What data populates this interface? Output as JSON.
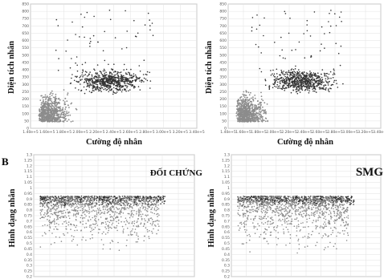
{
  "panel_b_label": "B",
  "chart_data": [
    {
      "type": "scatter",
      "title": "",
      "xlabel": "Cường độ nhân",
      "ylabel": "Diện tích nhân",
      "xticks": [
        "1.40e+5",
        "1.60e+5",
        "1.80e+5",
        "2.00e+5",
        "2.20e+5",
        "2.40e+5",
        "2.60e+5",
        "2.80e+5",
        "3.00e+5",
        "3.20e+5",
        "3.40e+5"
      ],
      "yticks": [
        "0",
        "50",
        "100",
        "150",
        "200",
        "250",
        "300",
        "350",
        "400",
        "450",
        "500",
        "550",
        "600",
        "650",
        "700",
        "750",
        "800",
        "850"
      ],
      "ylim": [
        0,
        850
      ],
      "series": [
        {
          "color": "#8c8c8c",
          "x_range": [
            "1.40e+5",
            "1.85e+5"
          ],
          "y_range": [
            0,
            320
          ]
        },
        {
          "color": "#333333",
          "x_range": [
            "1.85e+5",
            "3.00e+5"
          ],
          "y_range": [
            150,
            420
          ]
        }
      ]
    },
    {
      "type": "scatter",
      "title": "",
      "xlabel": "Cường độ nhân",
      "ylabel": "Diện tích nhân",
      "xticks": [
        "1.40e+5",
        "1.60e+5",
        "1.80e+5",
        "2.00e+5",
        "2.20e+5",
        "2.40e+5",
        "2.60e+5",
        "2.80e+5",
        "3.00e+5",
        "3.20e+5",
        "3.40e+5"
      ],
      "yticks": [
        "0",
        "50",
        "100",
        "150",
        "200",
        "250",
        "300",
        "350",
        "400",
        "450",
        "500",
        "550",
        "600",
        "650",
        "700",
        "750",
        "800",
        "850"
      ],
      "ylim": [
        0,
        850
      ],
      "series": [
        {
          "color": "#8c8c8c",
          "x_range": [
            "1.40e+5",
            "1.90e+5"
          ],
          "y_range": [
            0,
            300
          ]
        },
        {
          "color": "#333333",
          "x_range": [
            "1.90e+5",
            "3.20e+5"
          ],
          "y_range": [
            150,
            450
          ]
        }
      ]
    },
    {
      "type": "scatter",
      "title": "ĐỐI CHỨNG",
      "xlabel": "",
      "ylabel": "Hình dạng nhân",
      "yticks": [
        "0.2",
        "0.25",
        "0.3",
        "0.35",
        "0.4",
        "0.45",
        "0.5",
        "0.55",
        "0.6",
        "0.65",
        "0.7",
        "0.75",
        "0.8",
        "0.85",
        "0.9",
        "0.95",
        "1",
        "1.05",
        "1.1",
        "1.15",
        "1.2",
        "1.25",
        "1.3"
      ],
      "ylim": [
        0.2,
        1.3
      ],
      "series": [
        {
          "color": "#8c8c8c",
          "y_range": [
            0.3,
            1.0
          ]
        },
        {
          "color": "#333333",
          "y_range": [
            0.8,
            1.0
          ]
        }
      ]
    },
    {
      "type": "scatter",
      "title": "SMG",
      "xlabel": "",
      "ylabel": "Hình dạng nhân",
      "yticks": [
        "0.2",
        "0.25",
        "0.3",
        "0.35",
        "0.4",
        "0.45",
        "0.5",
        "0.55",
        "0.6",
        "0.65",
        "0.7",
        "0.75",
        "0.8",
        "0.85",
        "0.9",
        "0.95",
        "1",
        "1.05",
        "1.1",
        "1.15",
        "1.2",
        "1.25",
        "1.3"
      ],
      "ylim": [
        0.2,
        1.3
      ],
      "series": [
        {
          "color": "#8c8c8c",
          "y_range": [
            0.3,
            1.0
          ]
        },
        {
          "color": "#333333",
          "y_range": [
            0.8,
            1.0
          ]
        }
      ]
    }
  ]
}
